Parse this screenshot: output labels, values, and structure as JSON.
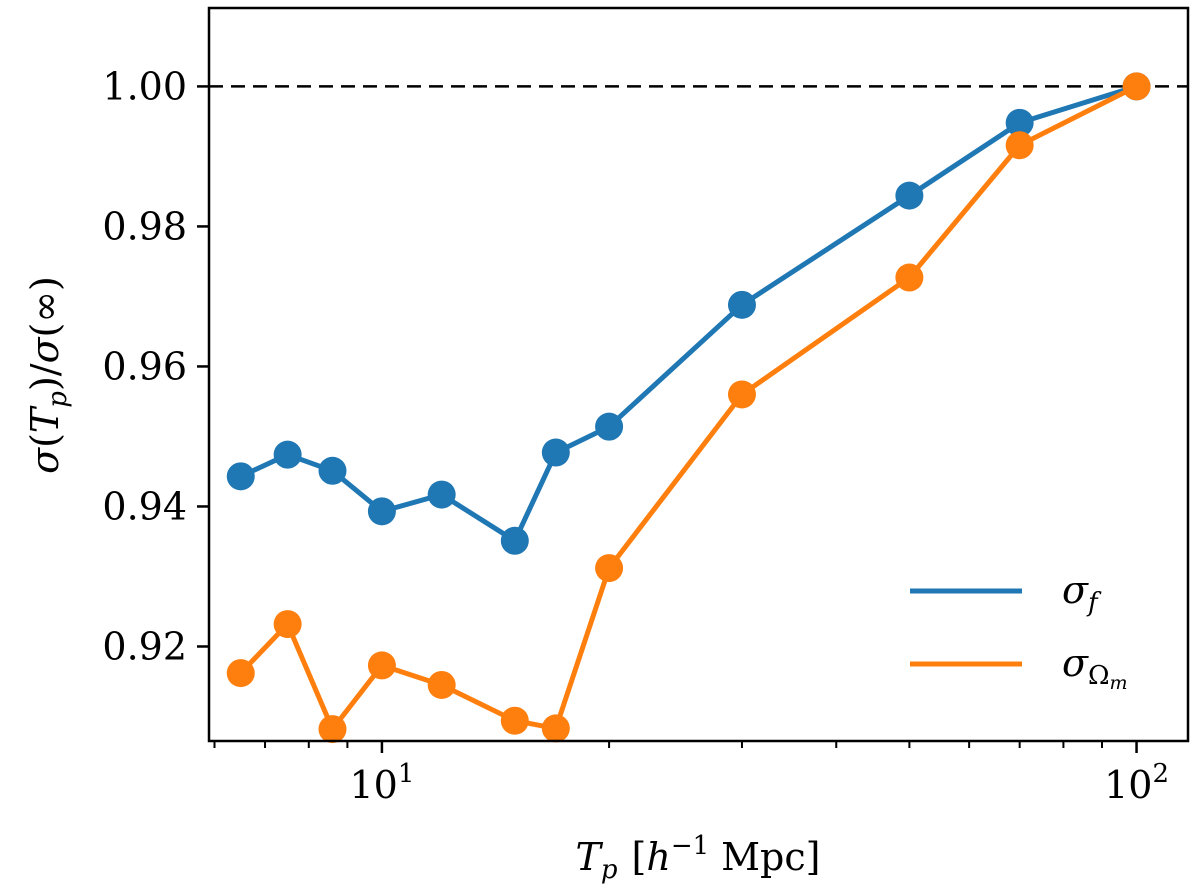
{
  "chart_data": {
    "type": "line",
    "x_scale": "log",
    "xlim": [
      5.9,
      117
    ],
    "ylim": [
      0.9065,
      1.0112
    ],
    "xlabel": {
      "main": "T",
      "sub": "p",
      "bracket_open": "[",
      "h": "h",
      "sup": "−1",
      "unit": "Mpc",
      "bracket_close": "]"
    },
    "ylabel": {
      "sigma1": "σ",
      "open1": "(",
      "T": "T",
      "sub": "p",
      "close1": ")",
      "slash": "/",
      "sigma2": "σ",
      "inf": "(∞)"
    },
    "x_ticks": [
      {
        "value": 10,
        "base": "10",
        "exp": "1"
      },
      {
        "value": 100,
        "base": "10",
        "exp": "2"
      }
    ],
    "y_ticks": [
      {
        "value": 0.92,
        "label": "0.92"
      },
      {
        "value": 0.94,
        "label": "0.94"
      },
      {
        "value": 0.96,
        "label": "0.96"
      },
      {
        "value": 0.98,
        "label": "0.98"
      },
      {
        "value": 1.0,
        "label": "1.00"
      }
    ],
    "reference_line": {
      "y": 1.0,
      "style": "dashed",
      "color": "#000000"
    },
    "legend_position": "lower-right",
    "series": [
      {
        "name": "σ_f",
        "legend_symbol": "σ",
        "legend_sub": "f",
        "color": "#1f77b4",
        "x": [
          6.5,
          7.5,
          8.6,
          10,
          12,
          15,
          17,
          20,
          30,
          50,
          70,
          100
        ],
        "y": [
          0.9443,
          0.9474,
          0.9451,
          0.9393,
          0.9417,
          0.9351,
          0.9477,
          0.9514,
          0.9688,
          0.9844,
          0.9948,
          1.0
        ]
      },
      {
        "name": "σ_Ωm",
        "legend_symbol": "σ",
        "legend_sub": "Ω",
        "legend_subsub": "m",
        "color": "#ff7f0e",
        "x": [
          6.5,
          7.5,
          8.6,
          10,
          12,
          15,
          17,
          20,
          30,
          50,
          70,
          100
        ],
        "y": [
          0.9162,
          0.9232,
          0.9082,
          0.9173,
          0.9145,
          0.9094,
          0.9083,
          0.9312,
          0.956,
          0.9727,
          0.9916,
          1.0
        ]
      }
    ]
  }
}
